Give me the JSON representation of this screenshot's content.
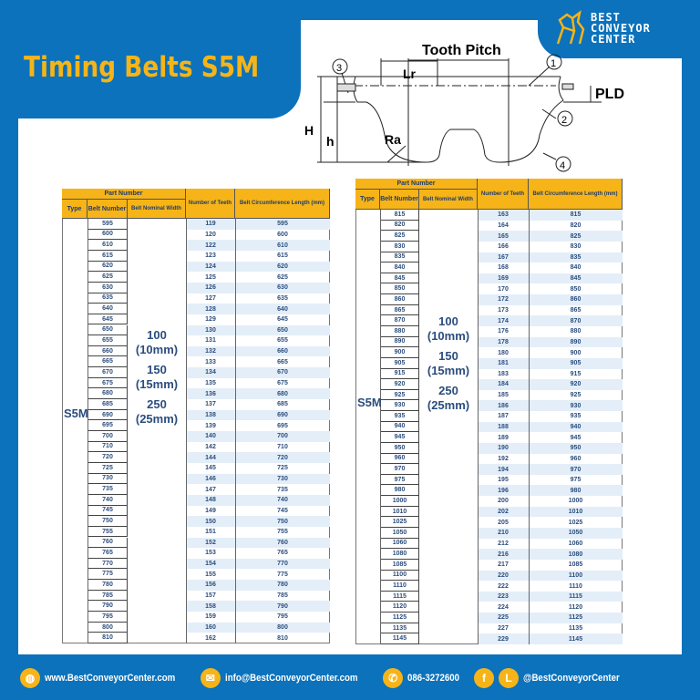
{
  "title": "Timing Belts S5M",
  "logo": {
    "line1": "BEST",
    "line2": "CONVEYOR",
    "line3": "CENTER"
  },
  "diagram": {
    "tooth_pitch": "Tooth Pitch",
    "lr": "Lr",
    "ra": "Ra",
    "H": "H",
    "h": "h",
    "pld": "PLD",
    "callouts": [
      "1",
      "2",
      "3",
      "4"
    ]
  },
  "table_headers": {
    "part_number": "Part Number",
    "type": "Type",
    "belt_number": "Belt Number",
    "belt_nominal_width": "Belt Nominal Width",
    "number_of_teeth": "Number of Teeth",
    "circumference": "Belt Circumference Length (mm)"
  },
  "type": "S5M",
  "widths": [
    {
      "value": "100",
      "mm": "(10mm)"
    },
    {
      "value": "150",
      "mm": "(15mm)"
    },
    {
      "value": "250",
      "mm": "(25mm)"
    }
  ],
  "tables": [
    {
      "rows": [
        [
          "595",
          "119",
          "595"
        ],
        [
          "600",
          "120",
          "600"
        ],
        [
          "610",
          "122",
          "610"
        ],
        [
          "615",
          "123",
          "615"
        ],
        [
          "620",
          "124",
          "620"
        ],
        [
          "625",
          "125",
          "625"
        ],
        [
          "630",
          "126",
          "630"
        ],
        [
          "635",
          "127",
          "635"
        ],
        [
          "640",
          "128",
          "640"
        ],
        [
          "645",
          "129",
          "645"
        ],
        [
          "650",
          "130",
          "650"
        ],
        [
          "655",
          "131",
          "655"
        ],
        [
          "660",
          "132",
          "660"
        ],
        [
          "665",
          "133",
          "665"
        ],
        [
          "670",
          "134",
          "670"
        ],
        [
          "675",
          "135",
          "675"
        ],
        [
          "680",
          "136",
          "680"
        ],
        [
          "685",
          "137",
          "685"
        ],
        [
          "690",
          "138",
          "690"
        ],
        [
          "695",
          "139",
          "695"
        ],
        [
          "700",
          "140",
          "700"
        ],
        [
          "710",
          "142",
          "710"
        ],
        [
          "720",
          "144",
          "720"
        ],
        [
          "725",
          "145",
          "725"
        ],
        [
          "730",
          "146",
          "730"
        ],
        [
          "735",
          "147",
          "735"
        ],
        [
          "740",
          "148",
          "740"
        ],
        [
          "745",
          "149",
          "745"
        ],
        [
          "750",
          "150",
          "750"
        ],
        [
          "755",
          "151",
          "755"
        ],
        [
          "760",
          "152",
          "760"
        ],
        [
          "765",
          "153",
          "765"
        ],
        [
          "770",
          "154",
          "770"
        ],
        [
          "775",
          "155",
          "775"
        ],
        [
          "780",
          "156",
          "780"
        ],
        [
          "785",
          "157",
          "785"
        ],
        [
          "790",
          "158",
          "790"
        ],
        [
          "795",
          "159",
          "795"
        ],
        [
          "800",
          "160",
          "800"
        ],
        [
          "810",
          "162",
          "810"
        ]
      ]
    },
    {
      "rows": [
        [
          "815",
          "163",
          "815"
        ],
        [
          "820",
          "164",
          "820"
        ],
        [
          "825",
          "165",
          "825"
        ],
        [
          "830",
          "166",
          "830"
        ],
        [
          "835",
          "167",
          "835"
        ],
        [
          "840",
          "168",
          "840"
        ],
        [
          "845",
          "169",
          "845"
        ],
        [
          "850",
          "170",
          "850"
        ],
        [
          "860",
          "172",
          "860"
        ],
        [
          "865",
          "173",
          "865"
        ],
        [
          "870",
          "174",
          "870"
        ],
        [
          "880",
          "176",
          "880"
        ],
        [
          "890",
          "178",
          "890"
        ],
        [
          "900",
          "180",
          "900"
        ],
        [
          "905",
          "181",
          "905"
        ],
        [
          "915",
          "183",
          "915"
        ],
        [
          "920",
          "184",
          "920"
        ],
        [
          "925",
          "185",
          "925"
        ],
        [
          "930",
          "186",
          "930"
        ],
        [
          "935",
          "187",
          "935"
        ],
        [
          "940",
          "188",
          "940"
        ],
        [
          "945",
          "189",
          "945"
        ],
        [
          "950",
          "190",
          "950"
        ],
        [
          "960",
          "192",
          "960"
        ],
        [
          "970",
          "194",
          "970"
        ],
        [
          "975",
          "195",
          "975"
        ],
        [
          "980",
          "196",
          "980"
        ],
        [
          "1000",
          "200",
          "1000"
        ],
        [
          "1010",
          "202",
          "1010"
        ],
        [
          "1025",
          "205",
          "1025"
        ],
        [
          "1050",
          "210",
          "1050"
        ],
        [
          "1060",
          "212",
          "1060"
        ],
        [
          "1080",
          "216",
          "1080"
        ],
        [
          "1085",
          "217",
          "1085"
        ],
        [
          "1100",
          "220",
          "1100"
        ],
        [
          "1110",
          "222",
          "1110"
        ],
        [
          "1115",
          "223",
          "1115"
        ],
        [
          "1120",
          "224",
          "1120"
        ],
        [
          "1125",
          "225",
          "1125"
        ],
        [
          "1135",
          "227",
          "1135"
        ],
        [
          "1145",
          "229",
          "1145"
        ]
      ]
    }
  ],
  "footer": {
    "website": "www.BestConveyorCenter.com",
    "email": "info@BestConveyorCenter.com",
    "phone": "086-3272600",
    "social": "@BestConveyorCenter",
    "line_icon_letter": "L",
    "facebook_icon_letter": "f"
  },
  "colors": {
    "brand_blue": "#0b72bb",
    "accent_yellow": "#f6b418",
    "text_navy": "#2b4d7e",
    "stripe": "#e3eef8"
  }
}
